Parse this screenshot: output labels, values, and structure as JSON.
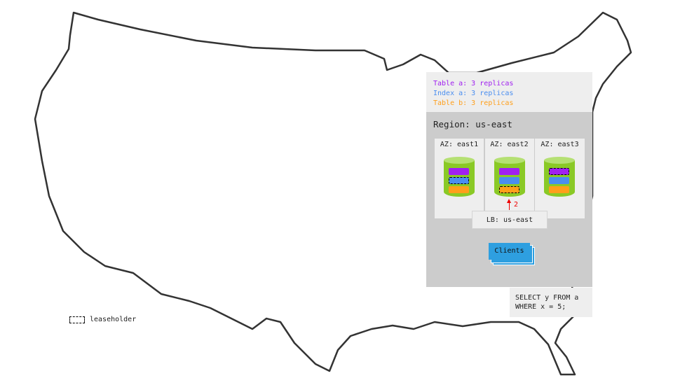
{
  "replica_legend": [
    {
      "text": "Table a: 3 replicas",
      "color": "#a020f0"
    },
    {
      "text": "Index a: 3 replicas",
      "color": "#4a8ef0"
    },
    {
      "text": "Table b: 3 replicas",
      "color": "#ff9f1a"
    }
  ],
  "region": {
    "title": "Region: us-east",
    "azs": [
      {
        "label": "AZ: east1",
        "leaseholder": "index_a"
      },
      {
        "label": "AZ: east2",
        "leaseholder": "table_b"
      },
      {
        "label": "AZ: east3",
        "leaseholder": "table_a"
      }
    ],
    "lb_label": "LB: us-east",
    "hop_label": "2",
    "clients_label": "Clients"
  },
  "query": {
    "line1": "SELECT y FROM a",
    "line2": "WHERE x = 5;"
  },
  "key": {
    "leaseholder_label": "leaseholder"
  },
  "colors": {
    "table_a": "#a020f0",
    "index_a": "#4a8ef0",
    "table_b": "#ff9f1a",
    "db": "#8ac926",
    "clients": "#2e9fe0",
    "hop_arrow": "#ee0000"
  }
}
